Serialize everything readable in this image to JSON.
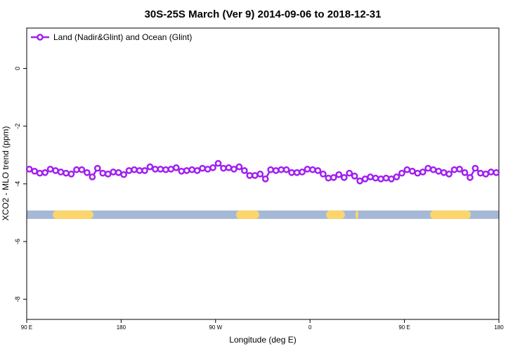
{
  "chart_data": {
    "type": "line",
    "title": "30S-25S March (Ver 9)   2014-09-06 to 2018-12-31",
    "xlabel": "Longitude (deg E)",
    "ylabel": "XCO2 - MLO trend (ppm)",
    "xlim": [
      90,
      540
    ],
    "ylim": [
      -8.7,
      1.4
    ],
    "xticks": [
      {
        "value": 90,
        "label": "90 E"
      },
      180,
      {
        "value": 270,
        "label": "90 W"
      },
      {
        "value": 360,
        "label": "0"
      },
      {
        "value": 450,
        "label": "90 E"
      },
      {
        "value": 540,
        "label": "180"
      }
    ],
    "yticks": [
      0,
      -2,
      -4,
      -6,
      -8
    ],
    "legend": "top-left",
    "x": [
      92.5,
      97.5,
      102.5,
      107.5,
      112.5,
      117.5,
      122.5,
      127.5,
      132.5,
      137.5,
      142.5,
      147.5,
      152.5,
      157.5,
      162.5,
      167.5,
      172.5,
      177.5,
      182.5,
      187.5,
      192.5,
      197.5,
      202.5,
      207.5,
      212.5,
      217.5,
      222.5,
      227.5,
      232.5,
      237.5,
      242.5,
      247.5,
      252.5,
      257.5,
      262.5,
      267.5,
      272.5,
      277.5,
      282.5,
      287.5,
      292.5,
      297.5,
      302.5,
      307.5,
      312.5,
      317.5,
      322.5,
      327.5,
      332.5,
      337.5,
      342.5,
      347.5,
      352.5,
      357.5,
      362.5,
      367.5,
      372.5,
      377.5,
      382.5,
      387.5,
      392.5,
      397.5,
      402.5,
      407.5,
      412.5,
      417.5,
      422.5,
      427.5,
      432.5,
      437.5,
      442.5,
      447.5,
      452.5,
      457.5,
      462.5,
      467.5,
      472.5,
      477.5,
      482.5,
      487.5,
      492.5,
      497.5,
      502.5,
      507.5,
      512.5,
      517.5,
      522.5,
      527.5,
      532.5,
      537.5
    ],
    "series": [
      {
        "name": "Land (Nadir&Glint) and Ocean (Glint)",
        "color": "#a020f0",
        "values": [
          -3.49,
          -3.56,
          -3.63,
          -3.61,
          -3.49,
          -3.54,
          -3.59,
          -3.63,
          -3.66,
          -3.51,
          -3.51,
          -3.61,
          -3.76,
          -3.46,
          -3.63,
          -3.66,
          -3.59,
          -3.61,
          -3.68,
          -3.54,
          -3.51,
          -3.54,
          -3.54,
          -3.41,
          -3.49,
          -3.49,
          -3.51,
          -3.49,
          -3.44,
          -3.56,
          -3.54,
          -3.51,
          -3.54,
          -3.46,
          -3.49,
          -3.44,
          -3.29,
          -3.46,
          -3.44,
          -3.49,
          -3.41,
          -3.54,
          -3.71,
          -3.71,
          -3.66,
          -3.83,
          -3.51,
          -3.54,
          -3.51,
          -3.51,
          -3.61,
          -3.61,
          -3.59,
          -3.49,
          -3.51,
          -3.54,
          -3.66,
          -3.8,
          -3.78,
          -3.68,
          -3.78,
          -3.63,
          -3.73,
          -3.9,
          -3.83,
          -3.76,
          -3.8,
          -3.83,
          -3.8,
          -3.83,
          -3.76,
          -3.63,
          -3.51,
          -3.56,
          -3.63,
          -3.59,
          -3.46,
          -3.51,
          -3.56,
          -3.61,
          -3.66,
          -3.51,
          -3.49,
          -3.61,
          -3.78,
          -3.46,
          -3.63,
          -3.66,
          -3.59,
          -3.61
        ]
      }
    ],
    "band": {
      "value": -5.07,
      "color": "#a5b9d6",
      "segment_color": "#fcd56c",
      "segments": [
        [
          114.8,
          153.6
        ],
        [
          289.5,
          311.6
        ],
        [
          375.3,
          393.3
        ],
        [
          403.4,
          406
        ],
        [
          474.4,
          513.2
        ]
      ]
    }
  }
}
